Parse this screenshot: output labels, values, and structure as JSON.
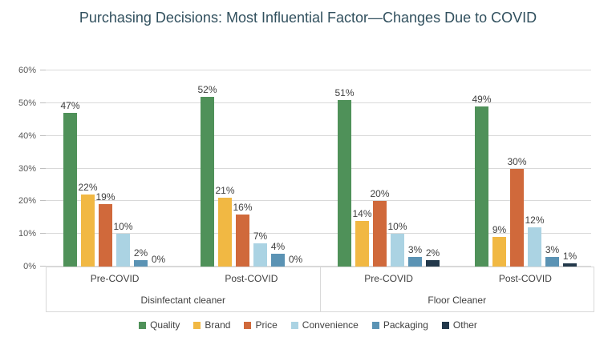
{
  "chart_data": {
    "type": "bar",
    "title": "Purchasing Decisions: Most Influential Factor—Changes Due to COVID",
    "grid": true,
    "legend_position": "bottom",
    "y_axis": {
      "min": 0,
      "max": 60,
      "step": 10,
      "ticks": [
        {
          "v": 0,
          "label": "0%"
        },
        {
          "v": 10,
          "label": "10%"
        },
        {
          "v": 20,
          "label": "20%"
        },
        {
          "v": 30,
          "label": "30%"
        },
        {
          "v": 40,
          "label": "40%"
        },
        {
          "v": 50,
          "label": "50%"
        },
        {
          "v": 60,
          "label": "60%"
        }
      ]
    },
    "series": [
      {
        "name": "Quality",
        "color": "#4f9159"
      },
      {
        "name": "Brand",
        "color": "#f1b843"
      },
      {
        "name": "Price",
        "color": "#d0693b"
      },
      {
        "name": "Convenience",
        "color": "#abd3e3"
      },
      {
        "name": "Packaging",
        "color": "#5b93b4"
      },
      {
        "name": "Other",
        "color": "#22384a"
      }
    ],
    "groups": [
      {
        "product": "Disinfectant cleaner",
        "periods": [
          {
            "label": "Pre-COVID",
            "values": [
              47,
              22,
              19,
              10,
              2,
              0
            ],
            "value_labels": [
              "47%",
              "22%",
              "19%",
              "10%",
              "2%",
              "0%"
            ]
          },
          {
            "label": "Post-COVID",
            "values": [
              52,
              21,
              16,
              7,
              4,
              0
            ],
            "value_labels": [
              "52%",
              "21%",
              "16%",
              "7%",
              "4%",
              "0%"
            ]
          }
        ]
      },
      {
        "product": "Floor Cleaner",
        "periods": [
          {
            "label": "Pre-COVID",
            "values": [
              51,
              14,
              20,
              10,
              3,
              2
            ],
            "value_labels": [
              "51%",
              "14%",
              "20%",
              "10%",
              "3%",
              "2%"
            ]
          },
          {
            "label": "Post-COVID",
            "values": [
              49,
              9,
              30,
              12,
              3,
              1
            ],
            "value_labels": [
              "49%",
              "9%",
              "30%",
              "12%",
              "3%",
              "1%"
            ]
          }
        ]
      }
    ],
    "style": {
      "title_color": "#31505e",
      "gridline_color": "#d9d9d9",
      "axis_text_color": "#595959",
      "label_text_color": "#404040"
    }
  }
}
